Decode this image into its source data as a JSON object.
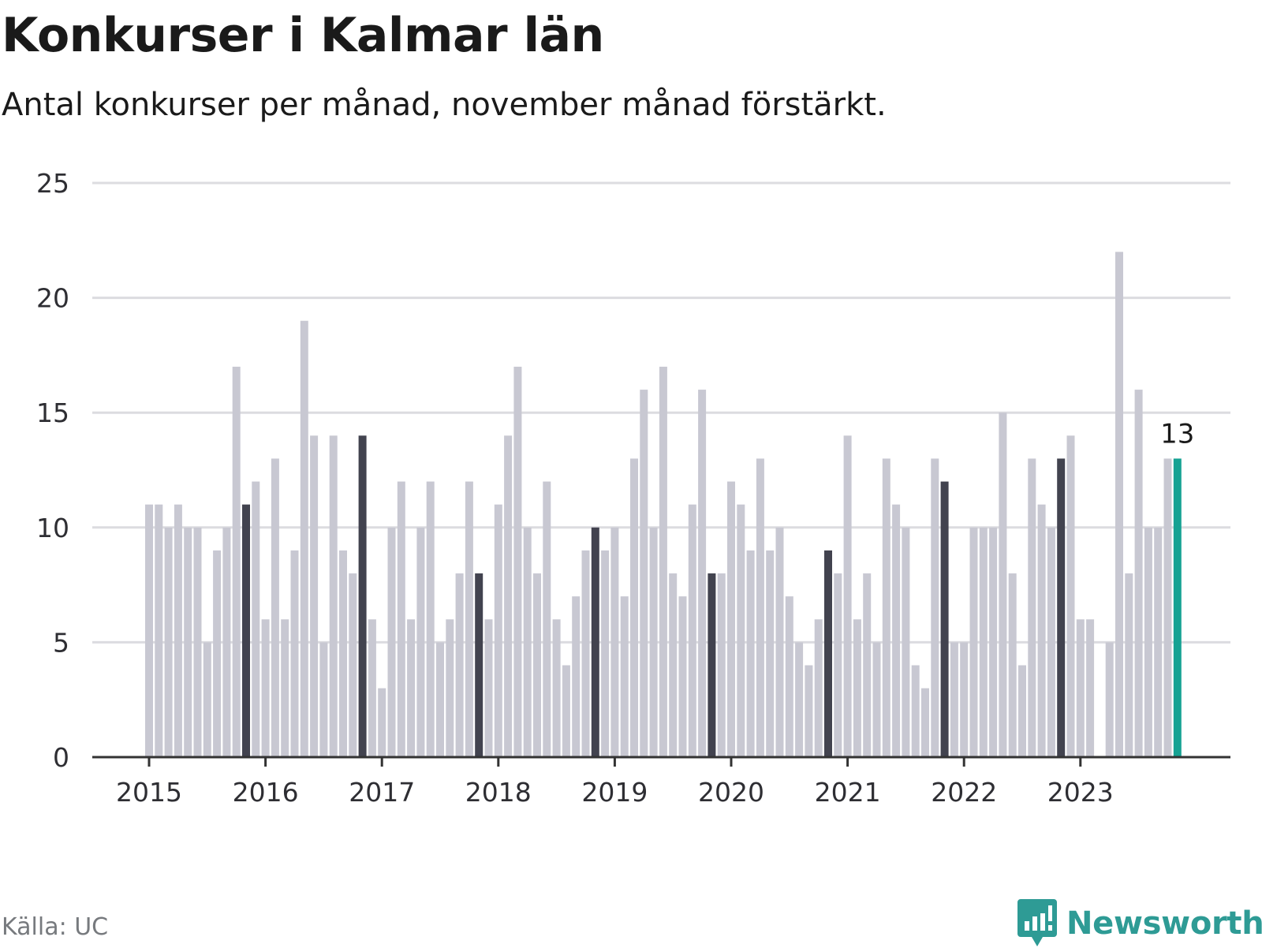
{
  "header": {
    "title": "Konkurser i Kalmar län",
    "subtitle": "Antal konkurser per månad, november månad förstärkt."
  },
  "footer": {
    "source": "Källa: UC",
    "brand": "Newsworthy"
  },
  "colors": {
    "bar_default": "#c8c8d2",
    "bar_november": "#42434f",
    "bar_latest": "#16a293",
    "grid": "#dcdce0",
    "axis": "#333333",
    "brand": "#2e9b95"
  },
  "icons": {
    "logo": "chat-bubble-bar-chart-icon"
  },
  "chart_data": {
    "type": "bar",
    "title": "Konkurser i Kalmar län",
    "subtitle": "Antal konkurser per månad, november månad förstärkt.",
    "xlabel": "",
    "ylabel": "",
    "ylim": [
      0,
      25
    ],
    "yticks": [
      0,
      5,
      10,
      15,
      20,
      25
    ],
    "xtick_labels": [
      "2015",
      "2016",
      "2017",
      "2018",
      "2019",
      "2020",
      "2021",
      "2022",
      "2023"
    ],
    "grid": true,
    "legend": "none",
    "start": "2015-01",
    "end": "2023-11",
    "highlight": "november",
    "latest_label": "13",
    "values": [
      11,
      11,
      10,
      11,
      10,
      10,
      5,
      9,
      10,
      17,
      11,
      12,
      6,
      13,
      6,
      9,
      19,
      14,
      5,
      14,
      9,
      8,
      14,
      6,
      3,
      10,
      12,
      6,
      10,
      12,
      5,
      6,
      8,
      12,
      8,
      6,
      11,
      14,
      17,
      10,
      8,
      12,
      6,
      4,
      7,
      9,
      10,
      9,
      10,
      7,
      13,
      16,
      10,
      17,
      8,
      7,
      11,
      16,
      8,
      8,
      12,
      11,
      9,
      13,
      9,
      10,
      7,
      5,
      4,
      6,
      9,
      8,
      14,
      6,
      8,
      5,
      13,
      11,
      10,
      4,
      3,
      13,
      12,
      5,
      5,
      10,
      10,
      10,
      15,
      8,
      4,
      13,
      11,
      10,
      13,
      14,
      6,
      6,
      0,
      5,
      22,
      8,
      16,
      10,
      10,
      13,
      13
    ]
  }
}
